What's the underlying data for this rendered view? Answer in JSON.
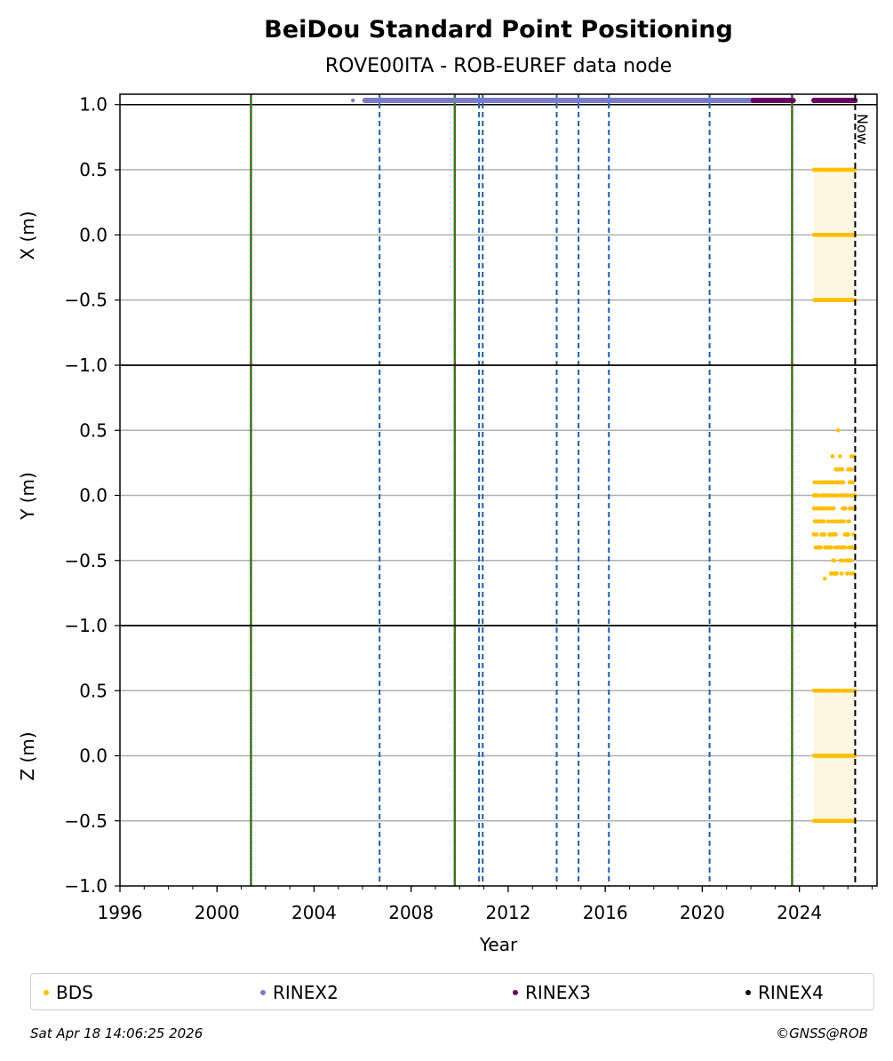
{
  "chart_data": {
    "type": "scatter",
    "title": "BeiDou Standard Point Positioning",
    "subtitle": "ROVE00ITA - ROB-EUREF data node",
    "xlabel": "Year",
    "xlim": [
      1996,
      2027.2
    ],
    "xticks": [
      "1996",
      "2000",
      "2004",
      "2008",
      "2012",
      "2016",
      "2020",
      "2024"
    ],
    "grid": true,
    "now_label": "Now",
    "now_x": 2026.3,
    "panels": [
      {
        "ylabel": "X (m)",
        "ylim": [
          -1.0,
          1.08
        ],
        "yticks": [
          "−1.0",
          "−0.5",
          "0.0",
          "0.5",
          "1.0"
        ]
      },
      {
        "ylabel": "Y (m)",
        "ylim": [
          -1.0,
          1.0
        ],
        "yticks": [
          "−1.0",
          "−0.5",
          "0.0",
          "0.5"
        ]
      },
      {
        "ylabel": "Z (m)",
        "ylim": [
          -1.0,
          1.0
        ],
        "yticks": [
          "−1.0",
          "−0.5",
          "0.0",
          "0.5"
        ]
      }
    ],
    "vlines_red_green": [
      2001.4,
      2009.8,
      2023.7
    ],
    "vlines_blue_dashed": [
      2006.7,
      2010.8,
      2010.95,
      2014.0,
      2014.9,
      2016.15,
      2020.3
    ],
    "data_availability": [
      {
        "name": "RINEX2",
        "segments": [
          [
            2005.6,
            2005.6
          ],
          [
            2006.1,
            2022.1
          ]
        ]
      },
      {
        "name": "RINEX3",
        "segments": [
          [
            2022.1,
            2023.75
          ],
          [
            2024.6,
            2026.3
          ]
        ]
      }
    ],
    "series": [
      {
        "name": "BDS",
        "panel": "X",
        "x_range": [
          2024.6,
          2026.3
        ],
        "y_levels": [
          -0.5,
          0.0,
          0.5
        ]
      },
      {
        "name": "BDS",
        "panel": "Y",
        "x_range": [
          2024.6,
          2026.3
        ],
        "y_min": -0.64,
        "y_max": 0.5
      },
      {
        "name": "BDS",
        "panel": "Z",
        "x_range": [
          2024.6,
          2026.3
        ],
        "y_levels": [
          -0.5,
          0.0,
          0.5
        ]
      }
    ],
    "legend": [
      {
        "label": "BDS",
        "color": "#ffbf00"
      },
      {
        "label": "RINEX2",
        "color": "#7b7bc4"
      },
      {
        "label": "RINEX3",
        "color": "#6a005f"
      },
      {
        "label": "RINEX4",
        "color": "#1a0010"
      }
    ],
    "legend_placement": "bottom"
  },
  "footer": {
    "timestamp": "Sat Apr 18 14:06:25 2026",
    "copyright": "©GNSS@ROB"
  }
}
